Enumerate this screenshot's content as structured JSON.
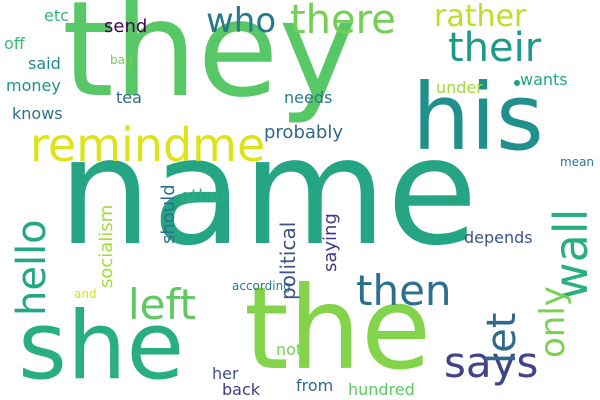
{
  "word_cloud": {
    "words": [
      {
        "key": "name",
        "text": "name",
        "color": "#25a584"
      },
      {
        "key": "they",
        "text": "they",
        "color": "#58c765"
      },
      {
        "key": "she",
        "text": "she",
        "color": "#29af7f"
      },
      {
        "key": "the",
        "text": "the",
        "color": "#84d44b"
      },
      {
        "key": "his",
        "text": "his",
        "color": "#21908d"
      },
      {
        "key": "remindme",
        "text": "remindme",
        "color": "#dde318"
      },
      {
        "key": "who",
        "text": "who",
        "color": "#2a788e"
      },
      {
        "key": "there",
        "text": "there",
        "color": "#73d055"
      },
      {
        "key": "their",
        "text": "their",
        "color": "#1f9a8a"
      },
      {
        "key": "rather",
        "text": "rather",
        "color": "#bddf26"
      },
      {
        "key": "hello",
        "text": "hello",
        "color": "#22a884"
      },
      {
        "key": "left",
        "text": "left",
        "color": "#5ec962"
      },
      {
        "key": "then",
        "text": "then",
        "color": "#2d708e"
      },
      {
        "key": "says",
        "text": "says",
        "color": "#414487"
      },
      {
        "key": "wall",
        "text": "wall",
        "color": "#29af7f"
      },
      {
        "key": "only",
        "text": "only",
        "color": "#7ad151"
      },
      {
        "key": "let",
        "text": "let",
        "color": "#31688e"
      },
      {
        "key": "send",
        "text": "send",
        "color": "#440154"
      },
      {
        "key": "etc",
        "text": "etc",
        "color": "#35b779"
      },
      {
        "key": "off",
        "text": "off",
        "color": "#3aba76"
      },
      {
        "key": "said",
        "text": "said",
        "color": "#23898e"
      },
      {
        "key": "bag",
        "text": "bag",
        "color": "#7ad151"
      },
      {
        "key": "money",
        "text": "money",
        "color": "#21918c"
      },
      {
        "key": "tea",
        "text": "tea",
        "color": "#31688e"
      },
      {
        "key": "knows",
        "text": "knows",
        "color": "#2c728e"
      },
      {
        "key": "wants",
        "text": "wants",
        "color": "#22a884"
      },
      {
        "key": "under",
        "text": "under",
        "color": "#a0da39"
      },
      {
        "key": "needs",
        "text": "needs",
        "color": "#2a788e"
      },
      {
        "key": "probably",
        "text": "probably",
        "color": "#31688e"
      },
      {
        "key": "mean",
        "text": "mean",
        "color": "#2a788e"
      },
      {
        "key": "other",
        "text": "other",
        "color": "#29af7f"
      },
      {
        "key": "should",
        "text": "should",
        "color": "#2d708e"
      },
      {
        "key": "socialism",
        "text": "socialism",
        "color": "#a5db36"
      },
      {
        "key": "political",
        "text": "political",
        "color": "#3b528b"
      },
      {
        "key": "saying",
        "text": "saying",
        "color": "#443a83"
      },
      {
        "key": "depends",
        "text": "depends",
        "color": "#3b528b"
      },
      {
        "key": "according",
        "text": "according",
        "color": "#2a788e"
      },
      {
        "key": "and",
        "text": "and",
        "color": "#d8e219"
      },
      {
        "key": "not",
        "text": "not",
        "color": "#7ad151"
      },
      {
        "key": "her",
        "text": "her",
        "color": "#3b528b"
      },
      {
        "key": "back",
        "text": "back",
        "color": "#443983"
      },
      {
        "key": "from",
        "text": "from",
        "color": "#31688e"
      },
      {
        "key": "hundred",
        "text": "hundred",
        "color": "#5ec962"
      }
    ]
  }
}
